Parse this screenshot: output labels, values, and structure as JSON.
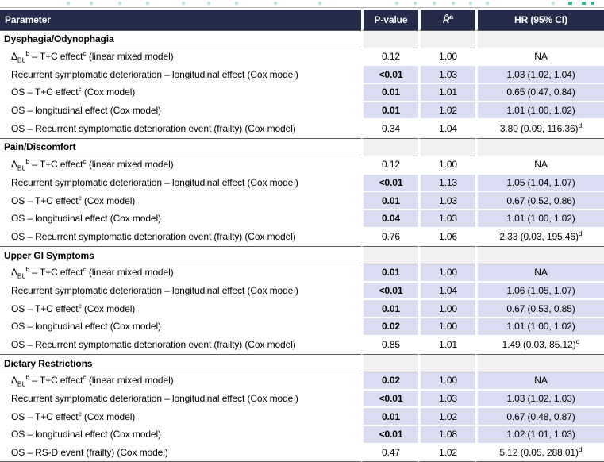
{
  "colors": {
    "header_bg": "#242c4a",
    "header_text": "#ffffff",
    "highlight_bg": "#daddf1",
    "section_value_bg": "#f1f1f4",
    "fragment_teal_pale": "#b9e6da",
    "fragment_teal_bright": "#2bb693"
  },
  "header": {
    "param_label": "Parameter",
    "p_label": "P-value",
    "r_hat": "R̂",
    "r_hat_sup": "a",
    "hr_label": "HR (95% CI)"
  },
  "sections": [
    {
      "title": "Dysphagia/Odynophagia",
      "rows": [
        {
          "param": [
            {
              "t": "Δ"
            },
            {
              "t": "BL",
              "s": "sub"
            },
            {
              "t": "b",
              "s": "sup"
            },
            {
              "t": " – T+C effect"
            },
            {
              "t": "c",
              "s": "sup"
            },
            {
              "t": " (linear mixed model)"
            }
          ],
          "p": "0.12",
          "sig": false,
          "r": "1.00",
          "hr": "NA",
          "hr_sup": ""
        },
        {
          "param": [
            {
              "t": "Recurrent symptomatic deterioration – longitudinal effect (Cox model)"
            }
          ],
          "p": "<0.01",
          "sig": true,
          "r": "1.03",
          "hr": "1.03 (1.02, 1.04)",
          "hr_sup": ""
        },
        {
          "param": [
            {
              "t": "OS – T+C effect"
            },
            {
              "t": "c",
              "s": "sup"
            },
            {
              "t": " (Cox model)"
            }
          ],
          "p": "0.01",
          "sig": true,
          "r": "1.01",
          "hr": "0.65 (0.47, 0.84)",
          "hr_sup": ""
        },
        {
          "param": [
            {
              "t": "OS – longitudinal effect (Cox model)"
            }
          ],
          "p": "0.01",
          "sig": true,
          "r": "1.02",
          "hr": "1.01 (1.00, 1.02)",
          "hr_sup": ""
        },
        {
          "param": [
            {
              "t": "OS – Recurrent symptomatic deterioration event (frailty) (Cox model)"
            }
          ],
          "p": "0.34",
          "sig": false,
          "r": "1.04",
          "hr": "3.80 (0.09, 116.36)",
          "hr_sup": "d"
        }
      ]
    },
    {
      "title": "Pain/Discomfort",
      "rows": [
        {
          "param": [
            {
              "t": "Δ"
            },
            {
              "t": "BL",
              "s": "sub"
            },
            {
              "t": "b",
              "s": "sup"
            },
            {
              "t": " – T+C effect"
            },
            {
              "t": "c",
              "s": "sup"
            },
            {
              "t": " (linear mixed model)"
            }
          ],
          "p": "0.12",
          "sig": false,
          "r": "1.00",
          "hr": "NA",
          "hr_sup": ""
        },
        {
          "param": [
            {
              "t": "Recurrent symptomatic deterioration – longitudinal effect (Cox model)"
            }
          ],
          "p": "<0.01",
          "sig": true,
          "r": "1.13",
          "hr": "1.05 (1.04, 1.07)",
          "hr_sup": ""
        },
        {
          "param": [
            {
              "t": "OS – T+C effect"
            },
            {
              "t": "c",
              "s": "sup"
            },
            {
              "t": " (Cox model)"
            }
          ],
          "p": "0.01",
          "sig": true,
          "r": "1.03",
          "hr": "0.67 (0.52, 0.86)",
          "hr_sup": ""
        },
        {
          "param": [
            {
              "t": "OS – longitudinal effect (Cox model)"
            }
          ],
          "p": "0.04",
          "sig": true,
          "r": "1.03",
          "hr": "1.01 (1.00, 1.02)",
          "hr_sup": ""
        },
        {
          "param": [
            {
              "t": "OS – Recurrent symptomatic deterioration event (frailty) (Cox model)"
            }
          ],
          "p": "0.76",
          "sig": false,
          "r": "1.06",
          "hr": "2.33 (0.03, 195.46)",
          "hr_sup": "d"
        }
      ]
    },
    {
      "title": "Upper GI Symptoms",
      "rows": [
        {
          "param": [
            {
              "t": "Δ"
            },
            {
              "t": "BL",
              "s": "sub"
            },
            {
              "t": "b",
              "s": "sup"
            },
            {
              "t": " – T+C effect"
            },
            {
              "t": "c",
              "s": "sup"
            },
            {
              "t": " (linear mixed model)"
            }
          ],
          "p": "0.01",
          "sig": true,
          "r": "1.00",
          "hr": "NA",
          "hr_sup": ""
        },
        {
          "param": [
            {
              "t": "Recurrent symptomatic deterioration – longitudinal effect (Cox model)"
            }
          ],
          "p": "<0.01",
          "sig": true,
          "r": "1.04",
          "hr": "1.06 (1.05, 1.07)",
          "hr_sup": ""
        },
        {
          "param": [
            {
              "t": "OS – T+C effect"
            },
            {
              "t": "c",
              "s": "sup"
            },
            {
              "t": " (Cox model)"
            }
          ],
          "p": "0.01",
          "sig": true,
          "r": "1.00",
          "hr": "0.67 (0.53, 0.85)",
          "hr_sup": ""
        },
        {
          "param": [
            {
              "t": "OS – longitudinal effect (Cox model)"
            }
          ],
          "p": "0.02",
          "sig": true,
          "r": "1.00",
          "hr": "1.01 (1.00, 1.02)",
          "hr_sup": ""
        },
        {
          "param": [
            {
              "t": "OS – Recurrent symptomatic deterioration event (frailty) (Cox model)"
            }
          ],
          "p": "0.85",
          "sig": false,
          "r": "1.01",
          "hr": "1.49 (0.03, 85.12)",
          "hr_sup": "d"
        }
      ]
    },
    {
      "title": "Dietary Restrictions",
      "rows": [
        {
          "param": [
            {
              "t": "Δ"
            },
            {
              "t": "BL",
              "s": "sub"
            },
            {
              "t": "b",
              "s": "sup"
            },
            {
              "t": " – T+C effect"
            },
            {
              "t": "c",
              "s": "sup"
            },
            {
              "t": " (linear mixed model)"
            }
          ],
          "p": "0.02",
          "sig": true,
          "r": "1.00",
          "hr": "NA",
          "hr_sup": ""
        },
        {
          "param": [
            {
              "t": "Recurrent symptomatic deterioration – longitudinal effect (Cox model)"
            }
          ],
          "p": "<0.01",
          "sig": true,
          "r": "1.03",
          "hr": "1.03 (1.02, 1.03)",
          "hr_sup": ""
        },
        {
          "param": [
            {
              "t": "OS – T+C effect"
            },
            {
              "t": "c",
              "s": "sup"
            },
            {
              "t": " (Cox model)"
            }
          ],
          "p": "0.01",
          "sig": true,
          "r": "1.02",
          "hr": "0.67 (0.48, 0.87)",
          "hr_sup": ""
        },
        {
          "param": [
            {
              "t": "OS – longitudinal effect (Cox model)"
            }
          ],
          "p": "<0.01",
          "sig": true,
          "r": "1.08",
          "hr": "1.02 (1.01, 1.03)",
          "hr_sup": ""
        },
        {
          "param": [
            {
              "t": "OS – RS-D event (frailty) (Cox model)"
            }
          ],
          "p": "0.47",
          "sig": false,
          "r": "1.02",
          "hr": "5.12 (0.05, 288.01)",
          "hr_sup": "d"
        }
      ]
    }
  ]
}
